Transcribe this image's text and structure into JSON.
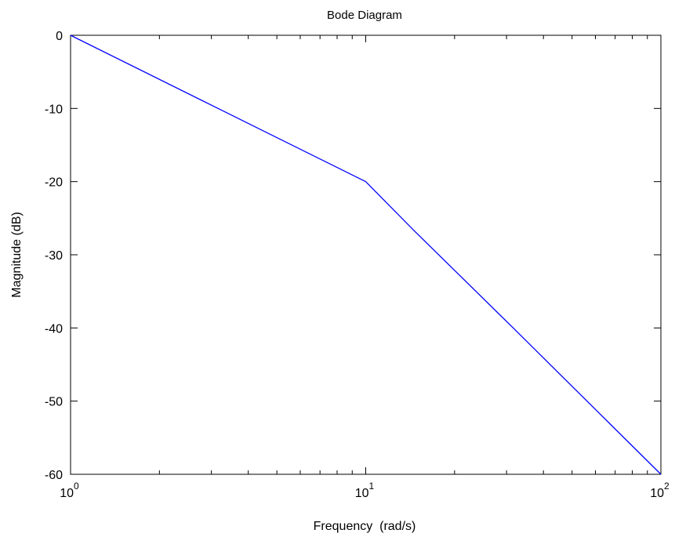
{
  "chart_data": {
    "type": "line",
    "title": "Bode Diagram",
    "xlabel": "Frequency  (rad/s)",
    "ylabel": "Magnitude (dB)",
    "xscale": "log",
    "xlim": [
      1,
      100
    ],
    "ylim": [
      -60,
      0
    ],
    "grid": false,
    "x_ticks": [
      {
        "value": 1,
        "base": "10",
        "exp": "0"
      },
      {
        "value": 10,
        "base": "10",
        "exp": "1"
      },
      {
        "value": 100,
        "base": "10",
        "exp": "2"
      }
    ],
    "y_ticks": [
      {
        "value": 0,
        "label": "0"
      },
      {
        "value": -10,
        "label": "-10"
      },
      {
        "value": -20,
        "label": "-20"
      },
      {
        "value": -30,
        "label": "-30"
      },
      {
        "value": -40,
        "label": "-40"
      },
      {
        "value": -50,
        "label": "-50"
      },
      {
        "value": -60,
        "label": "-60"
      }
    ],
    "series": [
      {
        "color": "#0000ff",
        "x": [
          1,
          3.16,
          10,
          14.5,
          31.6,
          68,
          100
        ],
        "y": [
          0,
          -10,
          -20,
          -26.6,
          -40,
          -53.3,
          -60
        ]
      }
    ]
  }
}
